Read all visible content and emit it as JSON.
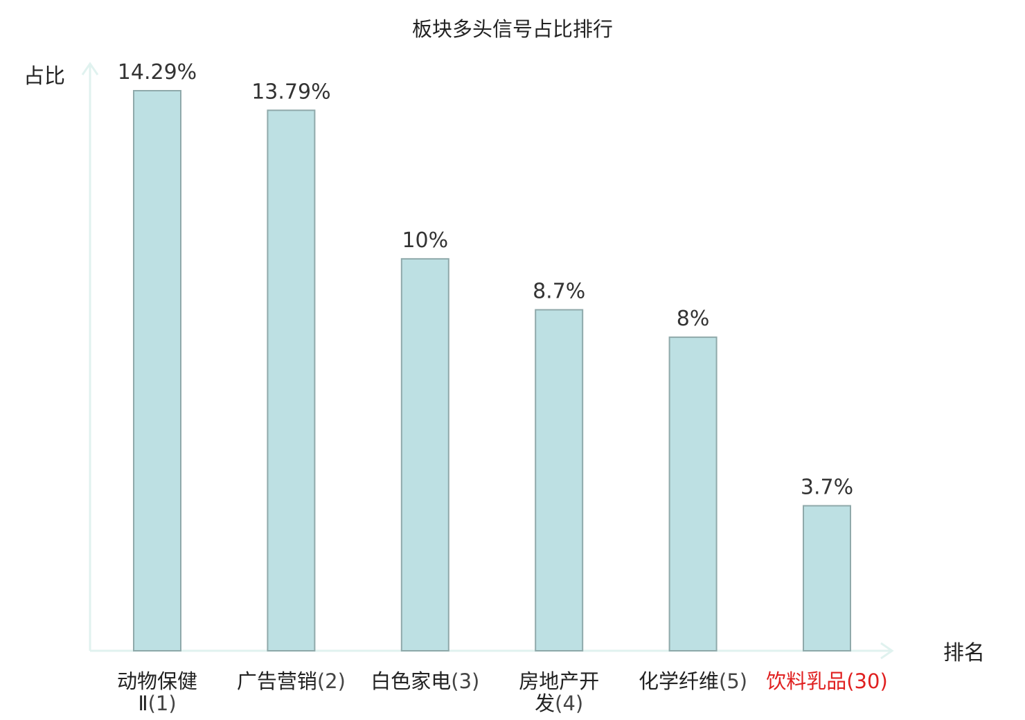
{
  "chart_data": {
    "type": "bar",
    "title": "板块多头信号占比排行",
    "ylabel": "占比",
    "xlabel": "排名",
    "ylim": [
      0,
      15
    ],
    "grid": false,
    "categories": [
      {
        "name": "动物保健Ⅱ",
        "rank": "(1)",
        "lines": [
          "动物保健",
          "Ⅱ"
        ],
        "highlight": false
      },
      {
        "name": "广告营销",
        "rank": "(2)",
        "lines": [
          "广告营销"
        ],
        "highlight": false
      },
      {
        "name": "白色家电",
        "rank": "(3)",
        "lines": [
          "白色家电"
        ],
        "highlight": false
      },
      {
        "name": "房地产开发",
        "rank": "(4)",
        "lines": [
          "房地产开",
          "发"
        ],
        "highlight": false
      },
      {
        "name": "化学纤维",
        "rank": "(5)",
        "lines": [
          "化学纤维"
        ],
        "highlight": false
      },
      {
        "name": "饮料乳品",
        "rank": "(30)",
        "lines": [
          "饮料乳品"
        ],
        "highlight": true
      }
    ],
    "values": [
      14.29,
      13.79,
      10,
      8.7,
      8,
      3.7
    ],
    "value_labels": [
      "14.29%",
      "13.79%",
      "10%",
      "8.7%",
      "8%",
      "3.7%"
    ],
    "colors": {
      "bar_fill": "#bde0e3",
      "bar_stroke": "#8fa9aa",
      "axis": "#e0f2ef",
      "highlight_text": "#e02020"
    }
  }
}
